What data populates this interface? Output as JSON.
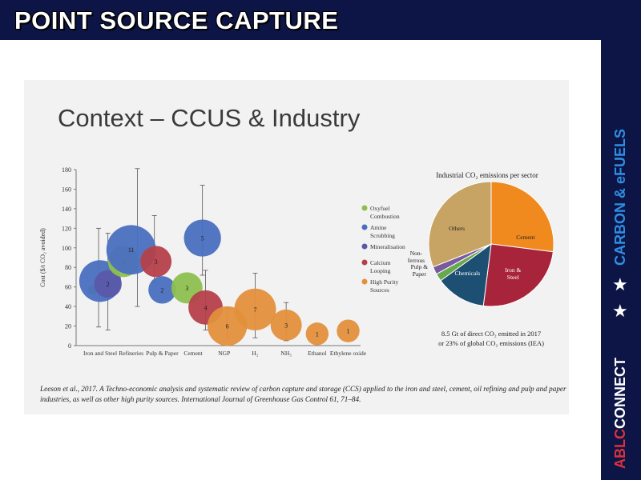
{
  "header": {
    "title": "POINT SOURCE CAPTURE"
  },
  "sidebar": {
    "brand_top": "CARBON & eFUELS",
    "brand_red": "ABLC",
    "brand_white": "CONNECT",
    "star_glyph": "★"
  },
  "slide": {
    "title": "Context – CCUS & Industry",
    "citation": "Leeson et al., 2017. A Techno-economic analysis and systematic review of carbon capture and storage (CCS) applied to the iron and steel, cement, oil refining and pulp and paper industries, as well as other high purity sources. International Journal of Greenhouse Gas Control 61, 71–84."
  },
  "chart_data": [
    {
      "type": "scatter",
      "ylabel": "Cost ($/t CO₂ avoided)",
      "ylim": [
        0,
        180
      ],
      "yticks": [
        0,
        20,
        40,
        60,
        80,
        100,
        120,
        140,
        160,
        180
      ],
      "categories": [
        "Iron and Steel",
        "Refineries",
        "Pulp & Paper",
        "Cement",
        "NGP",
        "H₂",
        "NH₃",
        "Ethanol",
        "Ethylene oxide"
      ],
      "legend": [
        {
          "name": "Oxyfuel Combustion",
          "color": "#8dbf4f"
        },
        {
          "name": "Amine Scrubbing",
          "color": "#4a6fc0"
        },
        {
          "name": "Mineralisation",
          "color": "#5a58a8"
        },
        {
          "name": "Calcium Looping",
          "color": "#b5404a"
        },
        {
          "name": "High Purity Sources",
          "color": "#e38f3b"
        }
      ],
      "bubbles": [
        {
          "category": 0,
          "offset": -0.25,
          "y": 57,
          "n": "",
          "tech": 0
        },
        {
          "category": 0,
          "offset": 0,
          "y": 66,
          "n": "7",
          "tech": 1
        },
        {
          "category": 0,
          "offset": 0.25,
          "y": 63,
          "n": "2",
          "tech": 2
        },
        {
          "category": 1,
          "offset": -0.25,
          "y": 86,
          "n": "3",
          "tech": 0
        },
        {
          "category": 1,
          "offset": 0,
          "y": 98,
          "n": "11",
          "tech": 1
        },
        {
          "category": 1,
          "offset": 0.8,
          "y": 86,
          "n": "3",
          "tech": 3
        },
        {
          "category": 2,
          "offset": 0,
          "y": 57,
          "n": "2",
          "tech": 1
        },
        {
          "category": 3,
          "offset": -0.2,
          "y": 59,
          "n": "3",
          "tech": 0
        },
        {
          "category": 3,
          "offset": 0.3,
          "y": 110,
          "n": "5",
          "tech": 1
        },
        {
          "category": 4,
          "offset": -0.6,
          "y": 39,
          "n": "4",
          "tech": 3
        },
        {
          "category": 4,
          "offset": 0.1,
          "y": 20,
          "n": "6",
          "tech": 4
        },
        {
          "category": 5,
          "offset": 0,
          "y": 37,
          "n": "7",
          "tech": 4
        },
        {
          "category": 6,
          "offset": 0,
          "y": 21,
          "n": "3",
          "tech": 4
        },
        {
          "category": 7,
          "offset": 0,
          "y": 12,
          "n": "1",
          "tech": 4
        },
        {
          "category": 8,
          "offset": 0,
          "y": 15,
          "n": "1",
          "tech": 4
        }
      ],
      "error_bars": [
        {
          "category": 0,
          "offset": -0.05,
          "low": 19,
          "high": 120
        },
        {
          "category": 0,
          "offset": 0.25,
          "low": 16,
          "high": 115
        },
        {
          "category": 1,
          "offset": 0.2,
          "low": 40,
          "high": 181
        },
        {
          "category": 1,
          "offset": 0.75,
          "low": 65,
          "high": 133
        },
        {
          "category": 3,
          "offset": 0.3,
          "low": 72,
          "high": 164
        },
        {
          "category": 4,
          "offset": -0.6,
          "low": 16,
          "high": 77
        },
        {
          "category": 4,
          "offset": 0.1,
          "low": 8,
          "high": 38
        },
        {
          "category": 5,
          "offset": 0,
          "low": 8,
          "high": 74
        },
        {
          "category": 6,
          "offset": 0,
          "low": 5,
          "high": 44
        }
      ]
    },
    {
      "type": "pie",
      "title": "Industrial CO₂ emissions per sector",
      "slices": [
        {
          "label": "Cement",
          "value": 27,
          "color": "#f08a1f"
        },
        {
          "label": "Iron & Steel",
          "value": 25,
          "color": "#a8243a"
        },
        {
          "label": "Chemicals",
          "value": 13,
          "color": "#1d4f73"
        },
        {
          "label": "Pulp & Paper",
          "value": 2,
          "color": "#6aa84f"
        },
        {
          "label": "Non-ferrous",
          "value": 2,
          "color": "#7a5a9e"
        },
        {
          "label": "Others",
          "value": 31,
          "color": "#c8a464"
        }
      ],
      "footnote_line1": "8.5 Gt of direct CO₂ emitted in 2017",
      "footnote_line2": "or 23% of global CO₂ emissions (IEA)"
    }
  ]
}
